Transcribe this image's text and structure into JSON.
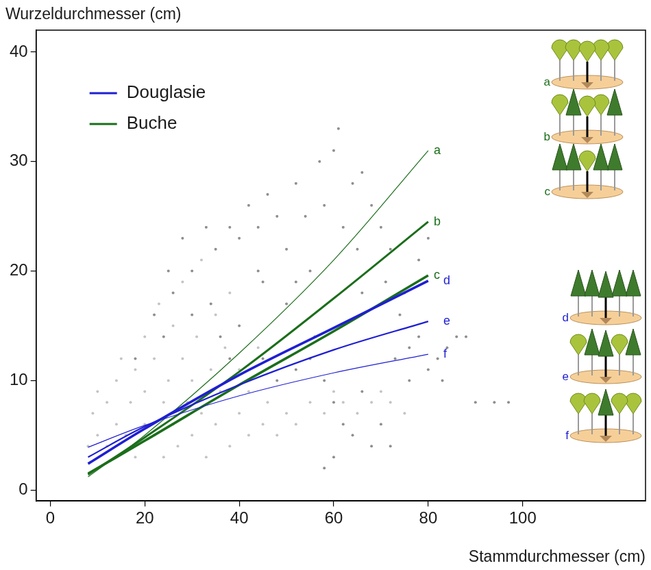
{
  "chart_data": {
    "type": "scatter",
    "x_label": "Stammdurchmesser (cm)",
    "y_label": "Wurzeldurchmesser (cm)",
    "xlim": [
      -3,
      126
    ],
    "xticks": [
      0,
      20,
      40,
      60,
      80,
      100
    ],
    "ylim": [
      -1,
      42
    ],
    "yticks": [
      0,
      10,
      20,
      30,
      40
    ],
    "grid": false,
    "legend": "upper left",
    "points": [
      {
        "color": "#c4c4c4",
        "marker": "circle",
        "x": [
          8,
          9,
          10,
          10,
          12,
          12,
          14,
          14,
          15,
          16,
          17,
          18,
          18,
          20,
          20,
          20,
          22,
          22,
          23,
          24,
          24,
          25,
          26,
          26,
          27,
          28,
          28,
          29,
          30,
          30,
          31,
          32,
          32,
          33,
          34,
          35,
          35,
          36,
          37,
          38,
          38,
          40,
          40,
          42,
          42,
          44,
          45,
          46,
          48,
          50,
          52,
          55,
          58,
          60,
          62,
          65,
          68,
          70,
          72,
          75
        ],
        "values": [
          4,
          7,
          9,
          5,
          4,
          8,
          6,
          10,
          12,
          5,
          8,
          11,
          3,
          6,
          9,
          14,
          5,
          12,
          17,
          8,
          3,
          10,
          15,
          6,
          4,
          12,
          19,
          8,
          5,
          10,
          14,
          21,
          7,
          3,
          11,
          16,
          6,
          9,
          13,
          4,
          18,
          7,
          11,
          5,
          9,
          13,
          6,
          8,
          5,
          7,
          6,
          8,
          7,
          9,
          8,
          7,
          8,
          9,
          8,
          7
        ]
      },
      {
        "color": "#8e8e8e",
        "marker": "circle",
        "x": [
          18,
          22,
          25,
          28,
          30,
          33,
          35,
          36,
          38,
          40,
          42,
          44,
          45,
          46,
          48,
          50,
          50,
          52,
          54,
          55,
          56,
          57,
          58,
          60,
          61,
          62,
          64,
          65,
          66,
          68,
          70,
          71,
          72,
          74,
          75,
          76,
          78,
          80,
          82,
          84,
          86,
          88,
          90,
          94,
          97,
          78,
          80,
          45,
          48,
          52,
          55,
          58,
          60,
          62,
          64,
          66,
          68,
          70,
          72,
          58,
          60,
          40,
          38,
          34,
          30,
          26,
          24,
          44,
          52,
          66,
          73,
          83,
          76
        ],
        "values": [
          12,
          16,
          20,
          23,
          16,
          24,
          22,
          14,
          24,
          23,
          26,
          24,
          19,
          27,
          25,
          22,
          17,
          28,
          25,
          20,
          14,
          30,
          26,
          31,
          33,
          24,
          28,
          22,
          29,
          26,
          24,
          19,
          22,
          16,
          18,
          13,
          14,
          11,
          12,
          13,
          14,
          14,
          8,
          8,
          8,
          21,
          23,
          12,
          10,
          11,
          12,
          10,
          8,
          6,
          5,
          9,
          4,
          6,
          4,
          2,
          3,
          15,
          12,
          17,
          20,
          18,
          14,
          20,
          19,
          18,
          12,
          10,
          10
        ]
      }
    ],
    "series": [
      {
        "name": "Douglasie",
        "color": "#1f1fd2",
        "type": "line",
        "line_style": "solid",
        "curves": [
          {
            "label": "d",
            "x": [
              8,
              20,
              40,
              60,
              80
            ],
            "values": [
              2.4,
              5.6,
              10.5,
              14.8,
              19.1
            ]
          },
          {
            "label": "e",
            "x": [
              8,
              20,
              40,
              60,
              80
            ],
            "values": [
              3.0,
              5.8,
              9.6,
              12.8,
              15.4
            ]
          },
          {
            "label": "f",
            "x": [
              8,
              20,
              40,
              60,
              80
            ],
            "values": [
              3.9,
              5.9,
              8.6,
              10.7,
              12.4
            ]
          }
        ]
      },
      {
        "name": "Buche",
        "color": "#1b6e1b",
        "type": "line",
        "line_style": "solid",
        "curves": [
          {
            "label": "a",
            "x": [
              8,
              20,
              40,
              60,
              80
            ],
            "values": [
              1.2,
              5.0,
              12.5,
              21.0,
              31.0
            ]
          },
          {
            "label": "b",
            "x": [
              8,
              20,
              40,
              60,
              80
            ],
            "values": [
              1.4,
              4.8,
              10.8,
              17.5,
              24.5
            ]
          },
          {
            "label": "c",
            "x": [
              8,
              20,
              40,
              60,
              80
            ],
            "values": [
              1.5,
              4.5,
              9.6,
              14.5,
              19.6
            ]
          }
        ]
      }
    ]
  }
}
